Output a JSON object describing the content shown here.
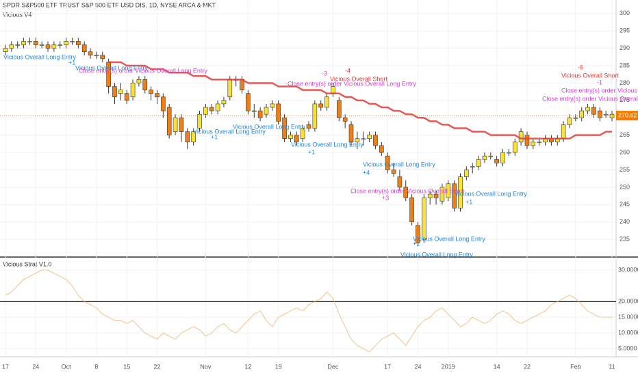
{
  "chart_data": [
    {
      "type": "candlestick",
      "title": "SPDR S&P500 ETF TRUST S&P 500 ETF USD DIS, 1D, NYSE ARCA & MKT",
      "subtitle": "Vicious V4",
      "categories": [
        "17",
        null,
        null,
        null,
        null,
        "24",
        null,
        null,
        null,
        null,
        "Oct",
        null,
        null,
        null,
        null,
        "8",
        null,
        null,
        null,
        null,
        "15",
        null,
        null,
        null,
        null,
        "22",
        null,
        null,
        null,
        null,
        null,
        null,
        null,
        "Nov",
        null,
        null,
        null,
        null,
        null,
        null,
        "12",
        null,
        null,
        null,
        null,
        "19",
        null,
        null,
        null,
        null,
        null,
        null,
        null,
        null,
        "Dec",
        null,
        null,
        null,
        null,
        null,
        null,
        null,
        null,
        "17",
        null,
        null,
        null,
        null,
        "24",
        null,
        null,
        null,
        null,
        "2019",
        null,
        null,
        null,
        null,
        null,
        null,
        null,
        "14",
        null,
        null,
        null,
        null,
        "22",
        null,
        null,
        null,
        null,
        null,
        null,
        null,
        "Feb",
        null,
        null,
        null,
        null,
        null,
        "11"
      ],
      "open": [
        289,
        290,
        291,
        291,
        292,
        292,
        291,
        291,
        290,
        291,
        291,
        292,
        292,
        291,
        289,
        288,
        288,
        286,
        279,
        277,
        277,
        276,
        280,
        281,
        278,
        277,
        276,
        273,
        266,
        270,
        266,
        263,
        267,
        271,
        273,
        272,
        274,
        276,
        281,
        281,
        277,
        272,
        272,
        271,
        273,
        274,
        270,
        264,
        265,
        264,
        268,
        267,
        274,
        273,
        277,
        275,
        270,
        268,
        263,
        264,
        264,
        265,
        262,
        259,
        255,
        253,
        250,
        247,
        239,
        235,
        247,
        248,
        246,
        247,
        251,
        244,
        253,
        256,
        256,
        258,
        259,
        258,
        257,
        260,
        260,
        263,
        265,
        262,
        263,
        263,
        264,
        263,
        264,
        268,
        270,
        270,
        272,
        273,
        272,
        271,
        270
      ],
      "high": [
        291,
        292,
        292,
        293,
        293,
        293,
        292,
        292,
        292,
        292,
        293,
        293,
        293,
        292,
        290,
        289,
        289,
        287,
        280,
        280,
        278,
        281,
        282,
        282,
        279,
        278,
        277,
        274,
        271,
        271,
        267,
        267,
        272,
        274,
        274,
        275,
        276,
        282,
        282,
        282,
        278,
        274,
        273,
        274,
        275,
        275,
        271,
        266,
        266,
        268,
        269,
        275,
        275,
        277,
        280,
        276,
        271,
        269,
        266,
        266,
        266,
        266,
        263,
        260,
        257,
        255,
        252,
        248,
        240,
        248,
        249,
        249,
        251,
        252,
        252,
        254,
        256,
        257,
        259,
        260,
        260,
        259,
        261,
        261,
        264,
        267,
        266,
        264,
        264,
        265,
        265,
        265,
        269,
        271,
        271,
        273,
        274,
        274,
        273,
        272,
        272
      ],
      "low": [
        288,
        289,
        290,
        290,
        291,
        290,
        290,
        289,
        289,
        290,
        290,
        291,
        290,
        288,
        287,
        287,
        286,
        277,
        274,
        275,
        274,
        275,
        279,
        277,
        275,
        274,
        270,
        264,
        265,
        263,
        261,
        262,
        266,
        270,
        271,
        271,
        273,
        275,
        279,
        277,
        271,
        270,
        269,
        270,
        272,
        268,
        263,
        263,
        262,
        263,
        266,
        266,
        272,
        272,
        276,
        269,
        267,
        262,
        261,
        262,
        263,
        261,
        259,
        254,
        253,
        249,
        246,
        239,
        233,
        234,
        245,
        245,
        245,
        246,
        243,
        243,
        252,
        254,
        255,
        257,
        258,
        256,
        256,
        259,
        259,
        262,
        261,
        261,
        262,
        262,
        262,
        262,
        263,
        267,
        269,
        269,
        271,
        270,
        269,
        270,
        269
      ],
      "close": [
        290,
        291,
        291,
        292,
        292,
        291,
        291,
        290,
        291,
        291,
        292,
        292,
        291,
        289,
        288,
        288,
        287,
        279,
        276,
        278,
        275,
        280,
        281,
        278,
        277,
        276,
        272,
        265,
        270,
        266,
        263,
        266,
        271,
        273,
        272,
        274,
        275,
        281,
        281,
        278,
        272,
        272,
        270,
        273,
        274,
        269,
        264,
        265,
        263,
        267,
        267,
        274,
        273,
        276,
        279,
        270,
        269,
        263,
        264,
        264,
        265,
        262,
        260,
        255,
        254,
        250,
        247,
        240,
        234,
        247,
        248,
        247,
        250,
        251,
        244,
        253,
        255,
        256,
        258,
        259,
        259,
        257,
        260,
        260,
        263,
        266,
        262,
        263,
        263,
        264,
        263,
        264,
        268,
        270,
        270,
        272,
        273,
        271,
        270,
        271,
        271
      ],
      "up_color": "#f7e13a",
      "down_color": "#f07e12",
      "overlay": {
        "color": "#e53935",
        "values": [
          null,
          null,
          null,
          null,
          null,
          null,
          null,
          null,
          null,
          null,
          null,
          null,
          null,
          null,
          null,
          null,
          null,
          286,
          286,
          286,
          285,
          285,
          285,
          285,
          284,
          284,
          284,
          283,
          283,
          283,
          283,
          282,
          282,
          282,
          281,
          281,
          281,
          281,
          281,
          281,
          280,
          280,
          280,
          280,
          280,
          279,
          279,
          279,
          279,
          278,
          278,
          278,
          278,
          277,
          277,
          277,
          276,
          276,
          275,
          275,
          274,
          274,
          273,
          273,
          272,
          272,
          271,
          271,
          270,
          270,
          269,
          269,
          268,
          268,
          267,
          267,
          267,
          266,
          266,
          266,
          265,
          265,
          265,
          265,
          265,
          264,
          264,
          264,
          264,
          264,
          264,
          264,
          264,
          264,
          265,
          265,
          265,
          265,
          265,
          266,
          266
        ]
      },
      "ylim": [
        230.1,
        303.9
      ],
      "yticks": [
        235,
        240,
        245,
        250,
        255,
        260,
        265,
        270,
        275,
        280,
        285,
        290,
        295,
        300
      ],
      "last_price": 270.62,
      "last_price_color": "#f57c00",
      "annotations": [
        {
          "text": "Vicious Overall Long Entry",
          "color": "#1e88e5"
        },
        {
          "text": "+1",
          "color": "#1e88e5"
        },
        {
          "text": "Vicious Overall Long Entry",
          "color": "#1e88e5"
        },
        {
          "text": "Close entry(s) order Vicious Overall Long Entry",
          "color": "#d63fd6"
        },
        {
          "text": "Vicious Overall Long Entry",
          "color": "#1e88e5"
        },
        {
          "text": "+1",
          "color": "#1e88e5"
        },
        {
          "text": "Vicious Overall Long Entry",
          "color": "#1e88e5"
        },
        {
          "text": "Vicious Overall Long Entry",
          "color": "#1e88e5"
        },
        {
          "text": "+1",
          "color": "#1e88e5"
        },
        {
          "text": "Close entry(s) order Vicious Overall Long Entry",
          "color": "#d63fd6"
        },
        {
          "text": "Vicious Overall Short",
          "color": "#e53935"
        },
        {
          "text": "-4",
          "color": "#e53935"
        },
        {
          "text": "-3",
          "color": "#d63fd6"
        },
        {
          "text": "Vicious Overall Long Entry",
          "color": "#1e88e5"
        },
        {
          "text": "+4",
          "color": "#1e88e5"
        },
        {
          "text": "Close entry(s) order Vicious Overall Short",
          "color": "#d63fd6"
        },
        {
          "text": "+3",
          "color": "#d63fd6"
        },
        {
          "text": "Vicious Overall Long Entry",
          "color": "#1e88e5"
        },
        {
          "text": "+1",
          "color": "#1e88e5"
        },
        {
          "text": "Vicious Overall Long Entry",
          "color": "#1e88e5"
        },
        {
          "text": "Vicious Overall Short",
          "color": "#e53935"
        },
        {
          "text": "-6",
          "color": "#e53935"
        },
        {
          "text": "-1",
          "color": "#d63fd6"
        },
        {
          "text": "Close entry(s) order Vicious Overall Short",
          "color": "#d63fd6"
        },
        {
          "text": "Close entry(s) order Vicious Overall Short",
          "color": "#d63fd6"
        },
        {
          "text": "+1",
          "color": "#1e88e5"
        },
        {
          "text": "Vicious Overall Long Entry",
          "color": "#1e88e5"
        }
      ]
    },
    {
      "type": "line",
      "title": "Vicious Strat V1.0",
      "color": "#f2b36b",
      "values": [
        22,
        23,
        25,
        27,
        28,
        29,
        30,
        30,
        29,
        28,
        27,
        25,
        22,
        20,
        19,
        18,
        16,
        15,
        14,
        14,
        13,
        14,
        12,
        10,
        9,
        8,
        10,
        9,
        8,
        10,
        11,
        12,
        11,
        9,
        10,
        12,
        13,
        11,
        10,
        12,
        14,
        16,
        17,
        14,
        12,
        15,
        16,
        17,
        18,
        17,
        19,
        20,
        21,
        23,
        21,
        16,
        12,
        8,
        6,
        5,
        4,
        6,
        8,
        9,
        10,
        8,
        6,
        9,
        12,
        14,
        15,
        17,
        18,
        16,
        14,
        12,
        13,
        15,
        14,
        13,
        14,
        16,
        17,
        16,
        14,
        13,
        14,
        15,
        16,
        17,
        19,
        20,
        21,
        22,
        21,
        19,
        17,
        16,
        15,
        15,
        15
      ],
      "reference_line": 20,
      "reference_color": "#555",
      "ylim": [
        2.4,
        33.7
      ],
      "yticks": [
        {
          "value": 5,
          "label": "5.0000"
        },
        {
          "value": 10,
          "label": "10.0000"
        },
        {
          "value": 15,
          "label": "15.0000"
        },
        {
          "value": 20,
          "label": "20.0000"
        },
        {
          "value": 30,
          "label": "30.0000"
        }
      ]
    }
  ]
}
